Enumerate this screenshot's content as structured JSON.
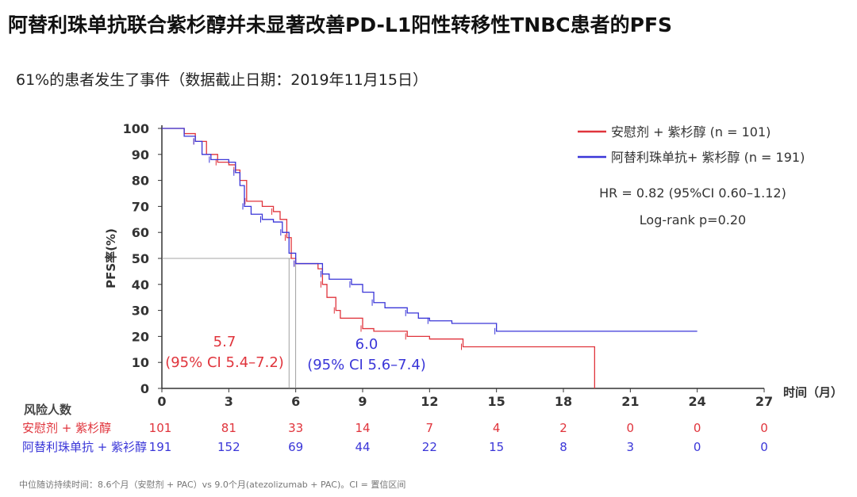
{
  "title": "阿替利珠单抗联合紫杉醇并未显著改善PD-L1阳性转移性TNBC患者的PFS",
  "subtitle": "61%的患者发生了事件（数据截止日期：2019年11月15日）",
  "footnote": "中位随访持续时间：8.6个月（安慰剂 + PAC）vs 9.0个月(atezolizumab + PAC)。CI = 置信区间",
  "chart_data": {
    "type": "line",
    "ylabel": "PFS率(%)",
    "xlabel": "时间（月）",
    "xlim": [
      0,
      27
    ],
    "ylim": [
      0,
      100
    ],
    "xticks": [
      0,
      3,
      6,
      9,
      12,
      15,
      18,
      21,
      24,
      27
    ],
    "yticks": [
      0,
      10,
      20,
      30,
      40,
      50,
      60,
      70,
      80,
      90,
      100
    ],
    "series": [
      {
        "name": "安慰剂 + 紫杉醇 (n = 101)",
        "color": "#e0343c",
        "step": [
          [
            0,
            100
          ],
          [
            1,
            98
          ],
          [
            1.5,
            95
          ],
          [
            2,
            90
          ],
          [
            2.5,
            87
          ],
          [
            3,
            86
          ],
          [
            3.3,
            84
          ],
          [
            3.5,
            80
          ],
          [
            3.8,
            72
          ],
          [
            4.5,
            70
          ],
          [
            5,
            68
          ],
          [
            5.3,
            65
          ],
          [
            5.6,
            58
          ],
          [
            5.8,
            50
          ],
          [
            6,
            48
          ],
          [
            7,
            46
          ],
          [
            7.2,
            40
          ],
          [
            7.4,
            35
          ],
          [
            7.8,
            30
          ],
          [
            8,
            27
          ],
          [
            9,
            23
          ],
          [
            9.5,
            22
          ],
          [
            11,
            20
          ],
          [
            12,
            19
          ],
          [
            13.5,
            16
          ],
          [
            19.4,
            16
          ],
          [
            19.4,
            0
          ]
        ],
        "median": 5.7,
        "median_label": "5.7",
        "ci_label": "(95% CI 5.4–7.2)"
      },
      {
        "name": "阿替利珠单抗+ 紫杉醇 (n = 191)",
        "color": "#3a36d8",
        "step": [
          [
            0,
            100
          ],
          [
            1,
            97
          ],
          [
            1.5,
            95
          ],
          [
            1.8,
            90
          ],
          [
            2.2,
            88
          ],
          [
            3,
            87
          ],
          [
            3.3,
            83
          ],
          [
            3.5,
            78
          ],
          [
            3.7,
            70
          ],
          [
            4,
            67
          ],
          [
            4.5,
            65
          ],
          [
            5,
            64
          ],
          [
            5.4,
            60
          ],
          [
            5.7,
            52
          ],
          [
            6,
            48
          ],
          [
            7,
            48
          ],
          [
            7.2,
            44
          ],
          [
            7.5,
            42
          ],
          [
            8.5,
            40
          ],
          [
            9,
            37
          ],
          [
            9.5,
            33
          ],
          [
            10,
            31
          ],
          [
            11,
            29
          ],
          [
            11.5,
            27
          ],
          [
            12,
            26
          ],
          [
            13,
            25
          ],
          [
            15,
            22
          ],
          [
            24,
            22
          ]
        ],
        "median": 6.0,
        "median_label": "6.0",
        "ci_label": "(95% CI 5.6–7.4)"
      }
    ],
    "annotations": [
      "HR = 0.82 (95%CI 0.60–1.12)",
      "Log-rank p=0.20"
    ],
    "legend": "top-right",
    "risk_table": {
      "header": "风险人数",
      "rows": [
        {
          "label": "安慰剂 + 紫杉醇",
          "color": "#e0343c",
          "values": [
            101,
            81,
            33,
            14,
            7,
            4,
            2,
            0,
            0,
            0
          ]
        },
        {
          "label": "阿替利珠单抗 + 紫衫醇",
          "color": "#3a36d8",
          "values": [
            191,
            152,
            69,
            44,
            22,
            15,
            8,
            3,
            0,
            0
          ]
        }
      ]
    }
  }
}
